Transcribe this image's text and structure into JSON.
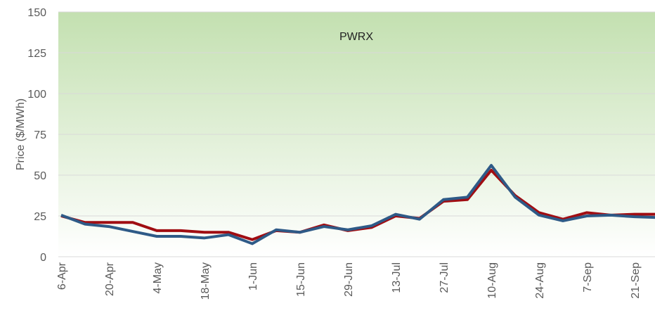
{
  "chart_data": {
    "type": "line",
    "title": "PWRX",
    "y_label": "Price ($/MWh)",
    "categories": [
      "6-Apr",
      null,
      "20-Apr",
      null,
      "4-May",
      null,
      "18-May",
      null,
      "1-Jun",
      null,
      "15-Jun",
      null,
      "29-Jun",
      null,
      "13-Jul",
      null,
      "27-Jul",
      null,
      "10-Aug",
      null,
      "24-Aug",
      null,
      "7-Sep",
      null,
      "21-Sep",
      null
    ],
    "series": [
      {
        "color": "#a00d12",
        "values": [
          25,
          21,
          21,
          21,
          16,
          16,
          15,
          15,
          10.5,
          16,
          15,
          19.5,
          16,
          18,
          25,
          23.5,
          34,
          35,
          53,
          37.5,
          27,
          23,
          27,
          25.5,
          26,
          26
        ]
      },
      {
        "color": "#2e5a87",
        "values": [
          25.5,
          20,
          18.5,
          15.5,
          12.5,
          12.5,
          11.5,
          13.5,
          8,
          16.5,
          15,
          18.5,
          16.5,
          19,
          26,
          23,
          35,
          36.5,
          56,
          36.5,
          25.5,
          22,
          25,
          25.5,
          24.5,
          24
        ]
      }
    ],
    "ylim": [
      0,
      150
    ],
    "yticks": [
      0,
      25,
      50,
      75,
      100,
      125,
      150
    ],
    "grid": true
  }
}
